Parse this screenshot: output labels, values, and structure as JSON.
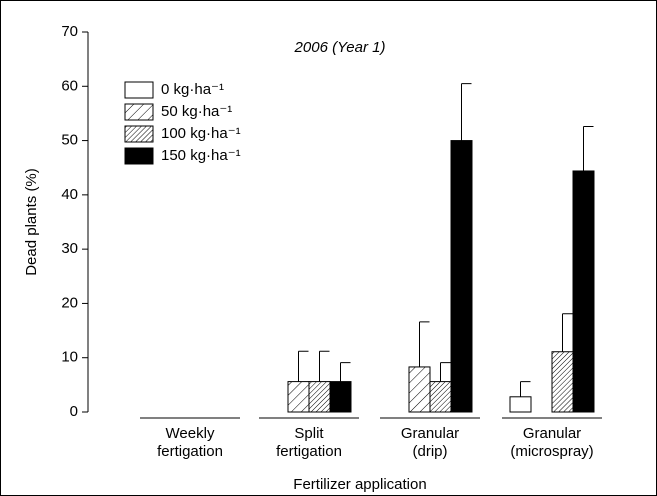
{
  "chart_data": {
    "type": "bar",
    "annotation": "2006 (Year 1)",
    "x_label": "Fertilizer application",
    "y_label": "Dead plants (%)",
    "categories": [
      [
        "Weekly",
        "fertigation"
      ],
      [
        "Split",
        "fertigation"
      ],
      [
        "Granular",
        "(drip)"
      ],
      [
        "Granular",
        "(microspray)"
      ]
    ],
    "series": [
      {
        "name": "0 kg·ha⁻¹",
        "color": "#ffffff",
        "pattern": "none",
        "values": [
          0,
          0,
          0,
          2.8
        ],
        "errors": [
          null,
          null,
          null,
          2.8
        ]
      },
      {
        "name": "50 kg·ha⁻¹",
        "color": "#ffffff",
        "pattern": "sparse-hatch",
        "values": [
          0,
          5.6,
          8.3,
          0
        ],
        "errors": [
          null,
          5.6,
          8.3,
          null
        ]
      },
      {
        "name": "100 kg·ha⁻¹",
        "color": "#ffffff",
        "pattern": "dense-hatch",
        "values": [
          0,
          5.6,
          5.6,
          11.1
        ],
        "errors": [
          null,
          5.6,
          3.5,
          7
        ]
      },
      {
        "name": "150 kg·ha⁻¹",
        "color": "#000000",
        "pattern": "solid",
        "values": [
          0,
          5.6,
          50,
          44.4
        ],
        "errors": [
          null,
          3.5,
          10.5,
          8.2
        ]
      }
    ],
    "ylim": [
      0,
      70
    ],
    "yticks": [
      0,
      10,
      20,
      30,
      40,
      50,
      60,
      70
    ],
    "legend": "top-left"
  }
}
